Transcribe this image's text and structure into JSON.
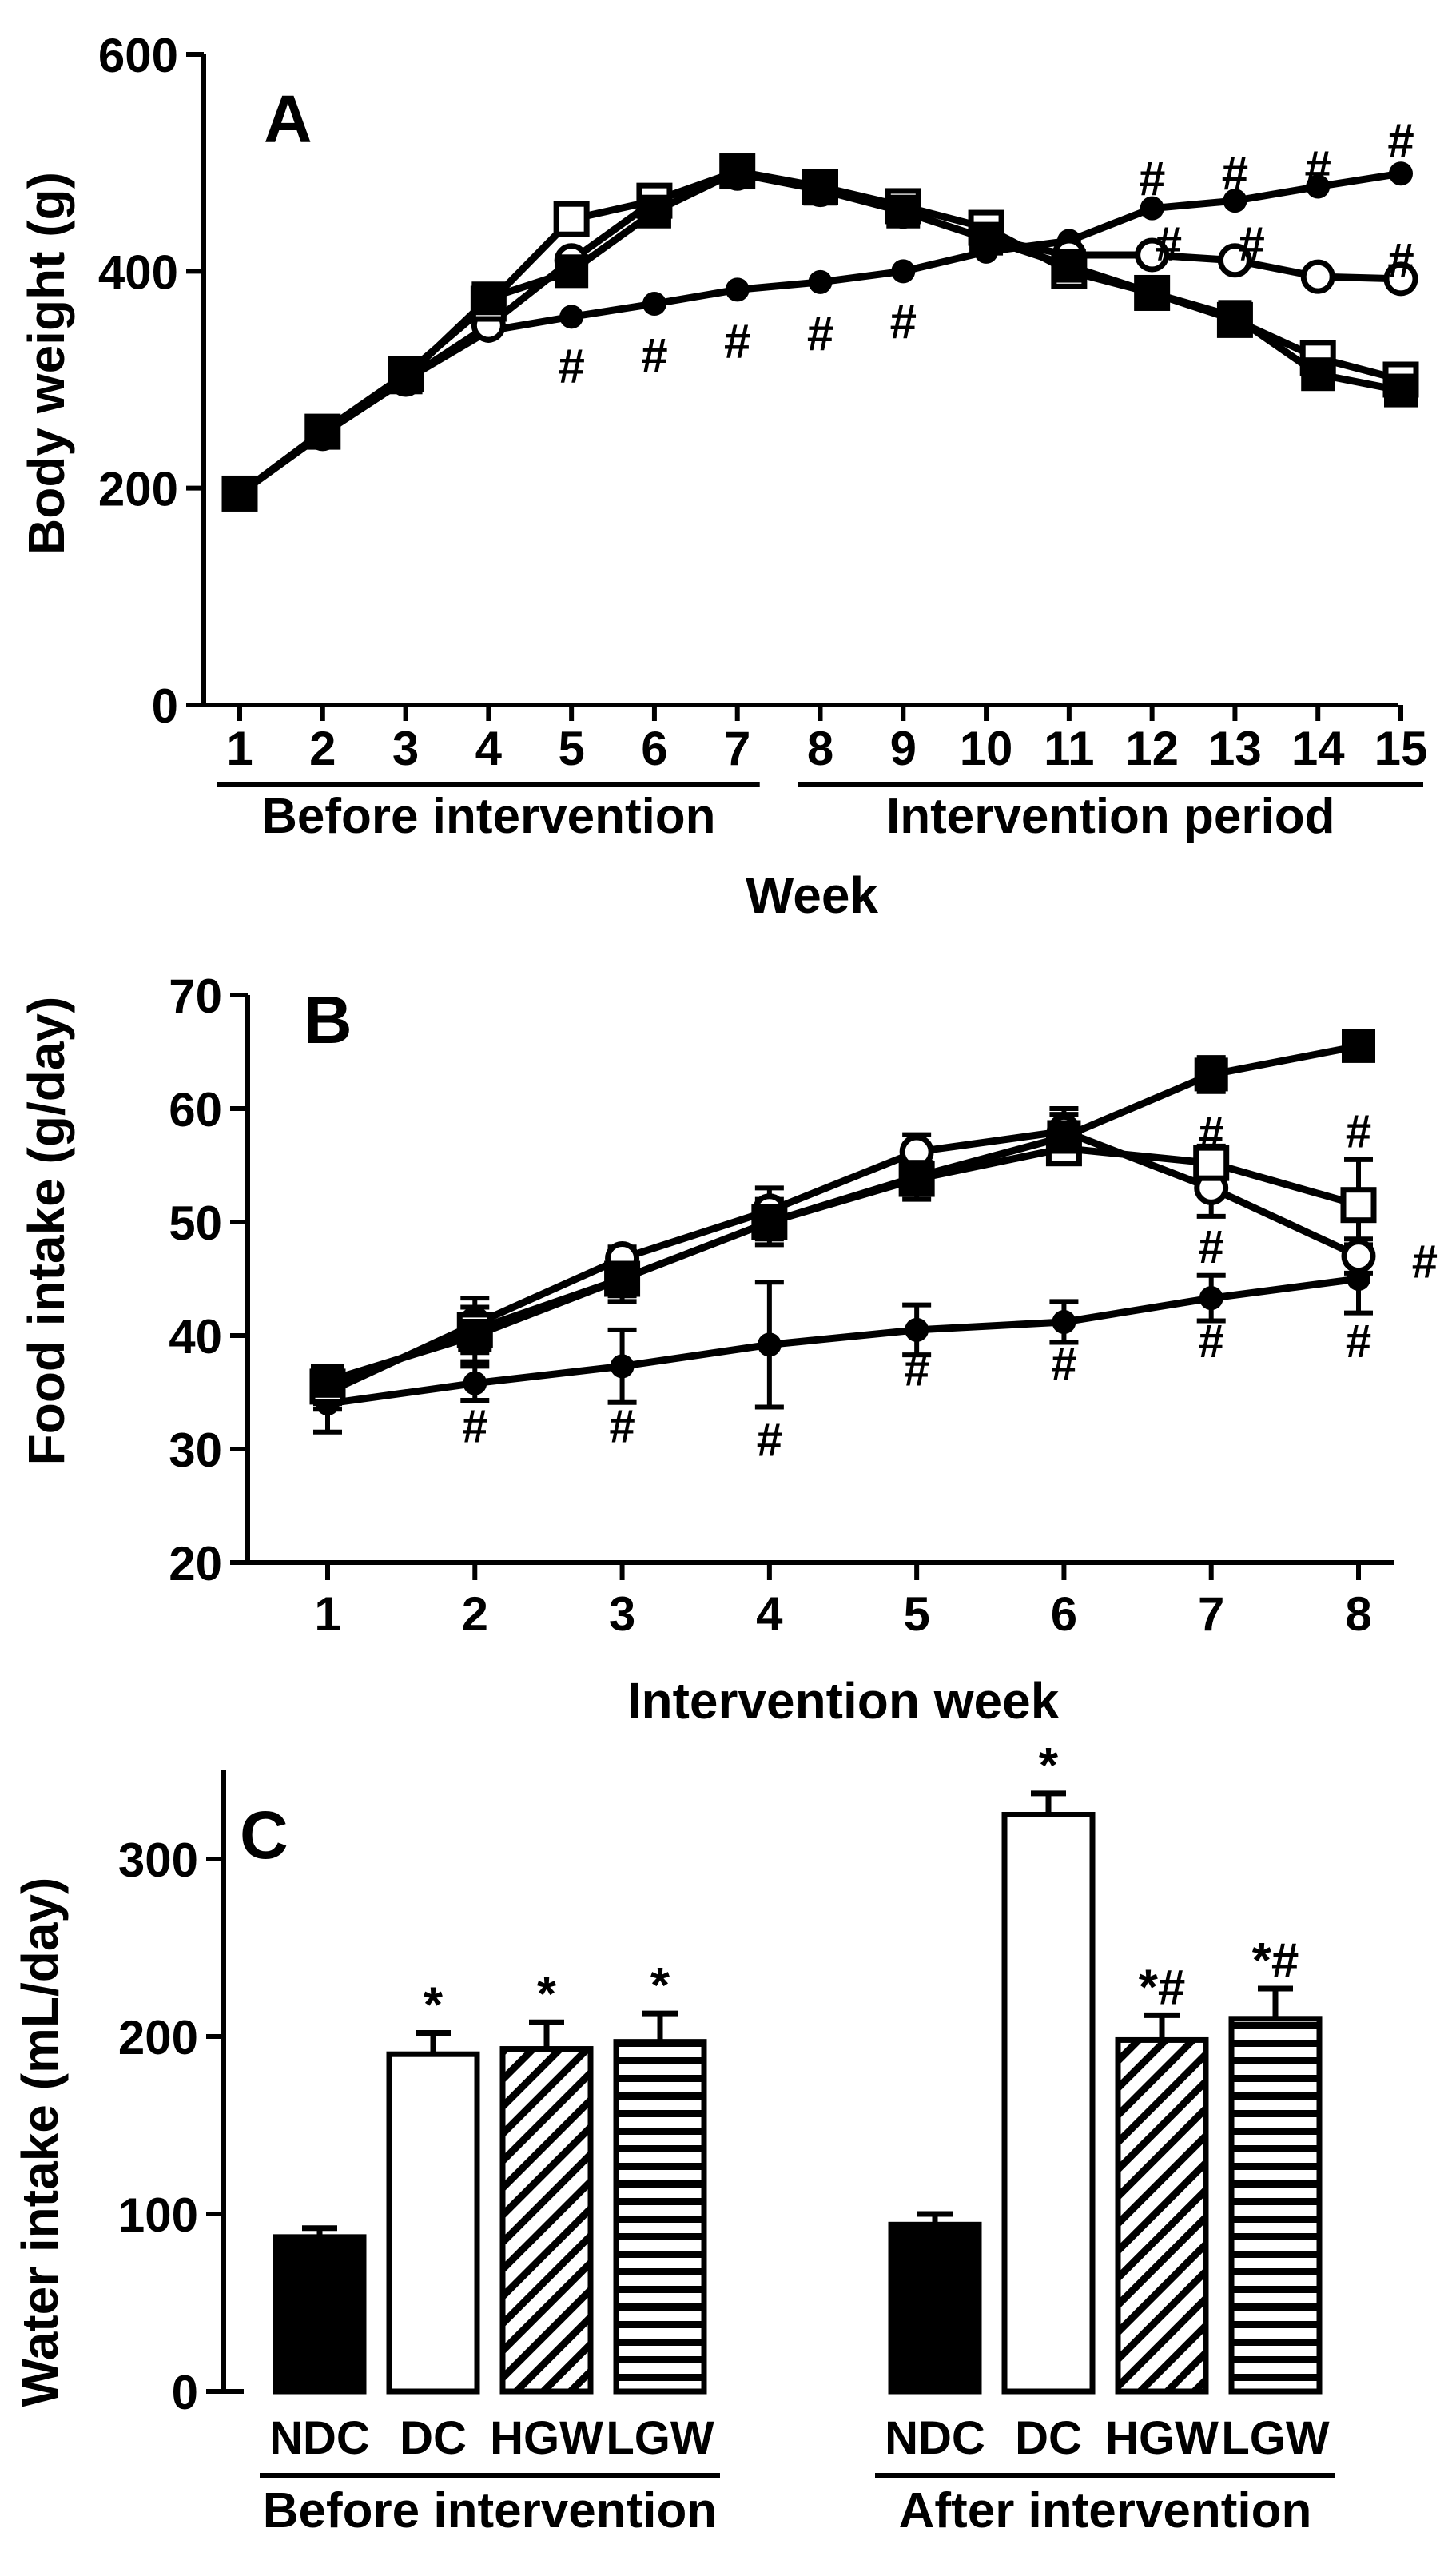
{
  "chart_data": [
    {
      "panel": "A",
      "type": "line",
      "xlabel": "Week",
      "ylabel": "Body weight (g)",
      "ylim": [
        0,
        600
      ],
      "yticks": [
        0,
        200,
        400,
        600
      ],
      "x": [
        1,
        2,
        3,
        4,
        5,
        6,
        7,
        8,
        9,
        10,
        11,
        12,
        13,
        14,
        15
      ],
      "groups": [
        {
          "label": "Before intervention",
          "from": 1,
          "to": 7
        },
        {
          "label": "Intervention period",
          "from": 8,
          "to": 15
        }
      ],
      "series": [
        {
          "marker": "filled-circle-small",
          "values": [
            195,
            250,
            300,
            345,
            358,
            370,
            383,
            390,
            400,
            418,
            428,
            458,
            465,
            478,
            490
          ]
        },
        {
          "marker": "open-circle",
          "values": [
            195,
            250,
            300,
            350,
            410,
            465,
            490,
            475,
            455,
            430,
            415,
            415,
            410,
            395,
            393
          ]
        },
        {
          "marker": "open-square",
          "values": [
            195,
            252,
            305,
            370,
            448,
            465,
            492,
            478,
            460,
            440,
            400,
            380,
            355,
            320,
            300
          ]
        },
        {
          "marker": "filled-square",
          "values": [
            195,
            252,
            302,
            375,
            400,
            455,
            492,
            476,
            455,
            430,
            405,
            380,
            358,
            305,
            290
          ]
        }
      ],
      "annotations": [
        {
          "text": "#",
          "x": 5,
          "y": 312
        },
        {
          "text": "#",
          "x": 6,
          "y": 322
        },
        {
          "text": "#",
          "x": 7,
          "y": 335
        },
        {
          "text": "#",
          "x": 8,
          "y": 342
        },
        {
          "text": "#",
          "x": 9,
          "y": 353
        },
        {
          "text": "#",
          "x": 12,
          "y": 485
        },
        {
          "text": "#",
          "x": 13,
          "y": 490
        },
        {
          "text": "#",
          "x": 14,
          "y": 495
        },
        {
          "text": "#",
          "x": 15,
          "y": 520
        },
        {
          "text": "#",
          "x": 12.2,
          "y": 425
        },
        {
          "text": "#",
          "x": 13.2,
          "y": 425
        },
        {
          "text": "#",
          "x": 15,
          "y": 410
        }
      ]
    },
    {
      "panel": "B",
      "type": "line",
      "xlabel": "Intervention week",
      "ylabel": "Food intake (g/day)",
      "ylim": [
        20,
        70
      ],
      "yticks": [
        20,
        30,
        40,
        50,
        60,
        70
      ],
      "x": [
        1,
        2,
        3,
        4,
        5,
        6,
        7,
        8
      ],
      "series": [
        {
          "marker": "filled-circle-small",
          "values": [
            34,
            35.8,
            37.3,
            39.2,
            40.5,
            41.2,
            43.3,
            45
          ],
          "err": [
            2.5,
            1.5,
            3.2,
            5.5,
            2.2,
            1.8,
            2.0,
            3.0
          ]
        },
        {
          "marker": "open-circle",
          "values": [
            35,
            41,
            46.8,
            51,
            56.2,
            58,
            53,
            47
          ],
          "err": [
            1.5,
            1.5,
            1.0,
            2.0,
            1.5,
            2.0,
            2.5,
            1.5
          ]
        },
        {
          "marker": "open-square",
          "values": [
            35.5,
            40.5,
            45,
            50,
            53.8,
            56.5,
            55.2,
            51.5
          ],
          "err": [
            1.5,
            2.8,
            2.0,
            2.0,
            1.8,
            1.2,
            1.5,
            4.0
          ]
        },
        {
          "marker": "filled-square",
          "values": [
            36,
            40,
            45,
            50,
            54,
            57.5,
            63,
            65.5
          ],
          "err": [
            1.0,
            1.5,
            1.5,
            1.5,
            1.5,
            2.0,
            1.5,
            0.5
          ]
        }
      ],
      "annotations": [
        {
          "text": "#",
          "x": 2,
          "y": 32
        },
        {
          "text": "#",
          "x": 3,
          "y": 32
        },
        {
          "text": "#",
          "x": 4,
          "y": 30.8
        },
        {
          "text": "#",
          "x": 5,
          "y": 37
        },
        {
          "text": "#",
          "x": 6,
          "y": 37.5
        },
        {
          "text": "#",
          "x": 7,
          "y": 39.5
        },
        {
          "text": "#",
          "x": 8,
          "y": 39.5
        },
        {
          "text": "#",
          "x": 7,
          "y": 57.8
        },
        {
          "text": "#",
          "x": 7,
          "y": 47.8
        },
        {
          "text": "#",
          "x": 8,
          "y": 58
        },
        {
          "text": "#",
          "x": 8.45,
          "y": 46.5
        }
      ]
    },
    {
      "panel": "C",
      "type": "bar",
      "ylabel": "Water intake (mL/day)",
      "ylim": [
        0,
        350
      ],
      "yticks": [
        0,
        100,
        200,
        300
      ],
      "categories": [
        "NDC",
        "DC",
        "HGW",
        "LGW"
      ],
      "groups": [
        {
          "label": "Before intervention",
          "values": [
            87,
            190,
            193,
            197
          ],
          "err": [
            5,
            12,
            15,
            16
          ],
          "annotations": [
            "",
            "*",
            "*",
            "*"
          ]
        },
        {
          "label": "After intervention",
          "values": [
            94,
            325,
            198,
            210
          ],
          "err": [
            6,
            12,
            14,
            17
          ],
          "annotations": [
            "",
            "*",
            "*#",
            "*#"
          ]
        }
      ],
      "fills": [
        "solid-black",
        "white",
        "diagonal-hatch",
        "horizontal-hatch"
      ]
    }
  ]
}
